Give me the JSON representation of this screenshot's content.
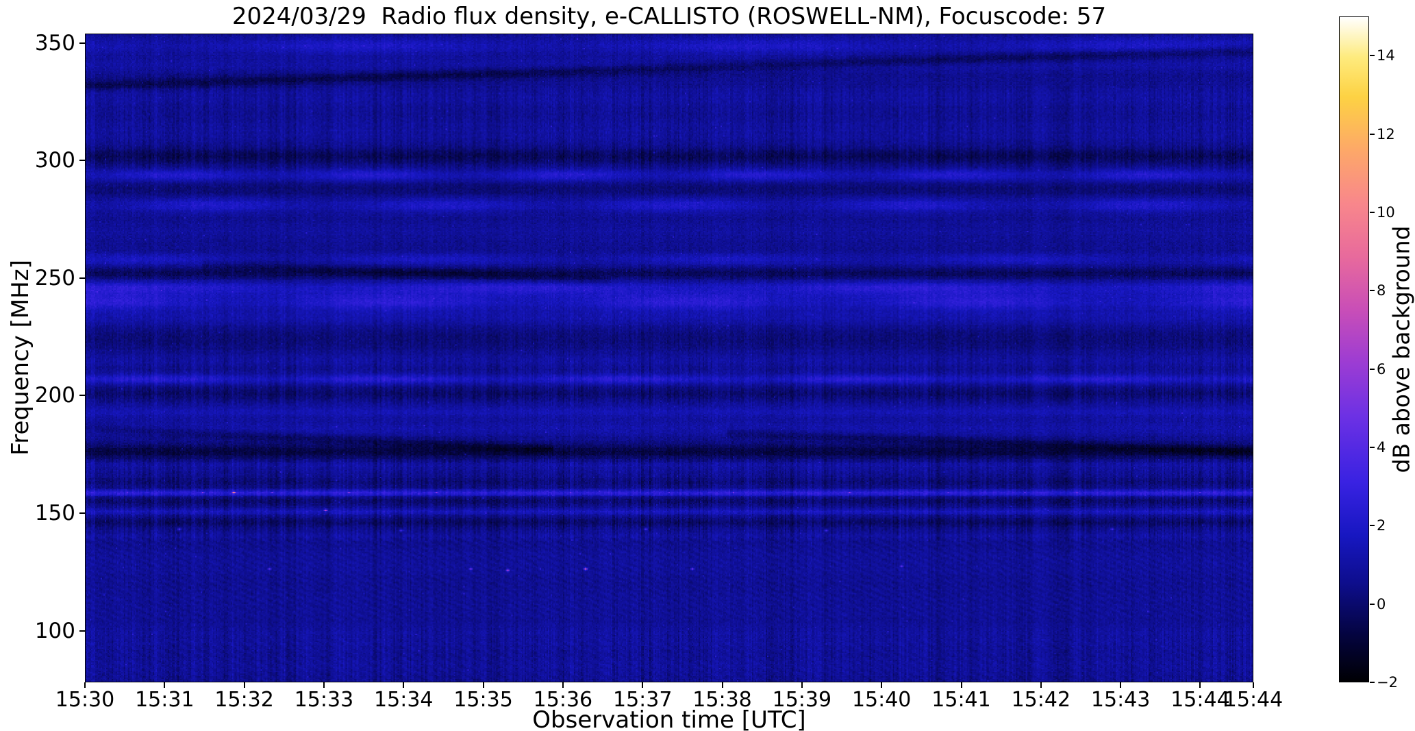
{
  "chart_data": {
    "type": "heatmap",
    "title": "2024/03/29  Radio flux density, e-CALLISTO (ROSWELL-NM), Focuscode: 57",
    "xlabel": "Observation time [UTC]",
    "ylabel": "Frequency [MHz]",
    "colorbar_label": "dB above background",
    "x_tick_labels": [
      "15:30",
      "15:31",
      "15:32",
      "15:33",
      "15:34",
      "15:35",
      "15:36",
      "15:37",
      "15:38",
      "15:39",
      "15:40",
      "15:41",
      "15:42",
      "15:43",
      "15:44",
      "15:44"
    ],
    "tick_interval_seconds": 60,
    "duration_seconds": 880,
    "y_ticks": [
      350,
      300,
      250,
      200,
      150,
      100
    ],
    "ylim": [
      78,
      354
    ],
    "colorbar_ticks": [
      [
        14,
        "14"
      ],
      [
        12,
        "12"
      ],
      [
        10,
        "10"
      ],
      [
        8,
        "8"
      ],
      [
        6,
        "6"
      ],
      [
        4,
        "4"
      ],
      [
        2,
        "2"
      ],
      [
        0,
        "0"
      ],
      [
        -2,
        "−2"
      ]
    ],
    "vmin": -2,
    "vmax": 15,
    "background_level_db": 0.55,
    "colormap": {
      "name": "gnuplot2-like",
      "stops": [
        [
          0,
          "#000003"
        ],
        [
          0.07,
          "#04043f"
        ],
        [
          0.15,
          "#0e0e8e"
        ],
        [
          0.22,
          "#1717c1"
        ],
        [
          0.3,
          "#3922e2"
        ],
        [
          0.4,
          "#6d31e4"
        ],
        [
          0.48,
          "#9c3cd3"
        ],
        [
          0.56,
          "#c94eb7"
        ],
        [
          0.64,
          "#e86a9c"
        ],
        [
          0.72,
          "#f8878b"
        ],
        [
          0.8,
          "#fda868"
        ],
        [
          0.88,
          "#fdd243"
        ],
        [
          0.94,
          "#feeb7e"
        ],
        [
          1,
          "#ffffff"
        ]
      ]
    },
    "bands": [
      {
        "f": 349,
        "s": 2.5,
        "a": 1.0,
        "w": 0.4,
        "k": 3
      },
      {
        "f": 341,
        "s": 2.0,
        "a": 0.45
      },
      {
        "f": 327,
        "s": 3.0,
        "a": 0.35
      },
      {
        "f": 313,
        "s": 4.0,
        "a": 0.3
      },
      {
        "f": 302,
        "s": 2.5,
        "a": -0.9
      },
      {
        "f": 294,
        "s": 1.8,
        "a": 1.2,
        "w": 0.4,
        "k": 6
      },
      {
        "f": 288,
        "s": 2.0,
        "a": -0.5
      },
      {
        "f": 281,
        "s": 2.2,
        "a": 1.0,
        "w": 0.5,
        "k": 5
      },
      {
        "f": 270,
        "s": 3.0,
        "a": 0.3
      },
      {
        "f": 258,
        "s": 1.8,
        "a": 0.8,
        "w": 0.5,
        "k": 4
      },
      {
        "f": 252,
        "s": 1.8,
        "a": -0.9
      },
      {
        "f": 246,
        "s": 2.0,
        "a": 1.4,
        "w": 0.3,
        "k": 3
      },
      {
        "f": 240,
        "s": 2.8,
        "a": 1.5,
        "w": 0.35,
        "k": 4
      },
      {
        "f": 233,
        "s": 2.2,
        "a": 0.6
      },
      {
        "f": 224,
        "s": 3.0,
        "a": -0.4
      },
      {
        "f": 215,
        "s": 2.0,
        "a": 0.4
      },
      {
        "f": 207,
        "s": 1.5,
        "a": 1.4,
        "w": 0.3,
        "k": 5
      },
      {
        "f": 201,
        "s": 1.8,
        "a": -0.6
      },
      {
        "f": 193,
        "s": 2.0,
        "a": 0.8
      },
      {
        "f": 186,
        "s": 2.2,
        "a": 0.6
      },
      {
        "f": 176,
        "s": 2.2,
        "a": -1.3
      },
      {
        "f": 170,
        "s": 1.5,
        "a": 0.4
      },
      {
        "f": 163,
        "s": 1.5,
        "a": -0.4
      },
      {
        "f": 158.5,
        "s": 0.9,
        "a": 2.0
      },
      {
        "f": 155,
        "s": 1.2,
        "a": -0.6
      },
      {
        "f": 150.5,
        "s": 0.9,
        "a": 1.0
      },
      {
        "f": 146,
        "s": 1.5,
        "a": -0.7
      },
      {
        "f": 140,
        "s": 1.2,
        "a": 0.3
      },
      {
        "f": 128,
        "s": 5.0,
        "a": 0.25
      },
      {
        "f": 112,
        "s": 4.0,
        "a": 0.15
      },
      {
        "f": 97,
        "s": 5.0,
        "a": 0.3
      },
      {
        "f": 84,
        "s": 3.0,
        "a": 0.2
      }
    ],
    "stripe_zones": [
      [
        78,
        101,
        0.8
      ],
      [
        101,
        138,
        0.5
      ],
      [
        138,
        173,
        0.9
      ],
      [
        173,
        196,
        0.4
      ],
      [
        196,
        216,
        0.75
      ],
      [
        216,
        238,
        0.5
      ],
      [
        238,
        262,
        0.4
      ],
      [
        262,
        296,
        0.35
      ],
      [
        296,
        332,
        0.7
      ],
      [
        332,
        354,
        0.4
      ]
    ],
    "moire_zones": [
      {
        "lo": 104,
        "hi": 140,
        "amp": 0.16,
        "kx": 0.55,
        "kf": 2.4
      },
      {
        "lo": 78,
        "hi": 96,
        "amp": 0.12,
        "kx": 0.5,
        "kf": 2.0
      }
    ],
    "streaks": [
      {
        "x0": 0,
        "f0": 332,
        "x1": 1,
        "f1": 347,
        "a": -1.1,
        "s": 1.6
      },
      {
        "x0": 0,
        "f0": 186,
        "x1": 0.4,
        "f1": 177,
        "a": -0.8,
        "s": 1.4
      },
      {
        "x0": 0.55,
        "f0": 184,
        "x1": 1,
        "f1": 176,
        "a": -0.8,
        "s": 1.4
      },
      {
        "x0": 0.1,
        "f0": 256,
        "x1": 0.45,
        "f1": 249,
        "a": -0.6,
        "s": 1.5
      }
    ],
    "rfi_dots": [
      [
        0.035,
        158.5,
        4.2
      ],
      [
        0.1,
        158.5,
        5.5
      ],
      [
        0.127,
        158.5,
        11
      ],
      [
        0.16,
        158.5,
        5
      ],
      [
        0.225,
        158.5,
        6
      ],
      [
        0.3,
        158.5,
        5.5
      ],
      [
        0.415,
        158.5,
        4.5
      ],
      [
        0.5,
        158.5,
        4.2
      ],
      [
        0.555,
        158.5,
        5
      ],
      [
        0.655,
        158.5,
        6
      ],
      [
        0.74,
        158.5,
        4.5
      ],
      [
        0.805,
        158.5,
        4.2
      ],
      [
        0.85,
        158.5,
        5
      ],
      [
        0.955,
        158.5,
        4.5
      ],
      [
        0.205,
        151,
        7
      ],
      [
        0.08,
        143,
        3.6
      ],
      [
        0.27,
        142.5,
        3.4
      ],
      [
        0.48,
        143,
        3.6
      ],
      [
        0.635,
        142.5,
        3.4
      ],
      [
        0.88,
        143,
        3.6
      ],
      [
        0.157,
        126,
        4.5
      ],
      [
        0.33,
        126,
        5.2
      ],
      [
        0.362,
        125.5,
        6.5
      ],
      [
        0.428,
        126.2,
        8
      ],
      [
        0.52,
        126,
        5
      ],
      [
        0.7,
        127,
        4.5
      ]
    ]
  }
}
